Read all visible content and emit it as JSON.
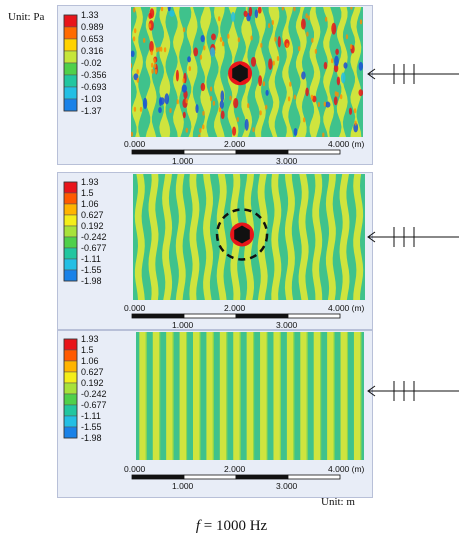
{
  "panels": [
    {
      "legend_values": [
        "1.33",
        "0.989",
        "0.653",
        "0.316",
        "-0.02",
        "-0.356",
        "-0.693",
        "-1.03",
        "-1.37"
      ],
      "scale": {
        "top_ticks": [
          "0.000",
          "2.000",
          "4.000 (m)"
        ],
        "bottom_ticks": [
          "1.000",
          "3.000"
        ]
      },
      "has_scatterer": true,
      "has_dashed_circle": false,
      "pattern": "scattered"
    },
    {
      "legend_values": [
        "1.93",
        "1.5",
        "1.06",
        "0.627",
        "0.192",
        "-0.242",
        "-0.677",
        "-1.11",
        "-1.55",
        "-1.98"
      ],
      "scale": {
        "top_ticks": [
          "0.000",
          "2.000",
          "4.000 (m)"
        ],
        "bottom_ticks": [
          "1.000",
          "3.000"
        ]
      },
      "has_scatterer": true,
      "has_dashed_circle": true,
      "pattern": "cloaked"
    },
    {
      "legend_values": [
        "1.93",
        "1.5",
        "1.06",
        "0.627",
        "0.192",
        "-0.242",
        "-0.677",
        "-1.11",
        "-1.55",
        "-1.98"
      ],
      "scale": {
        "top_ticks": [
          "0.000",
          "2.000",
          "4.000 (m)"
        ],
        "bottom_ticks": [
          "1.000",
          "3.000"
        ]
      },
      "has_scatterer": false,
      "has_dashed_circle": false,
      "pattern": "plane"
    }
  ],
  "unit_top": "Unit: Pa",
  "unit_bottom": "Unit: m",
  "caption": {
    "symbol": "f",
    "rest": " = 1000 Hz"
  },
  "colors": {
    "legend": [
      "#e8141a",
      "#ff6a00",
      "#ffd200",
      "#c6e63a",
      "#4fd04a",
      "#21c6a0",
      "#23bfe4",
      "#1a82e8",
      "#1522d8"
    ],
    "legend10": [
      "#e8141a",
      "#ff5a00",
      "#ffb400",
      "#f4ee1a",
      "#a8e23a",
      "#4fd04a",
      "#21c6a0",
      "#23bfe4",
      "#1a82e8",
      "#1522d8"
    ],
    "field_base": "#3fc28c",
    "stripe": "#cfe43e",
    "frame_bg": "#dfe6f3"
  }
}
